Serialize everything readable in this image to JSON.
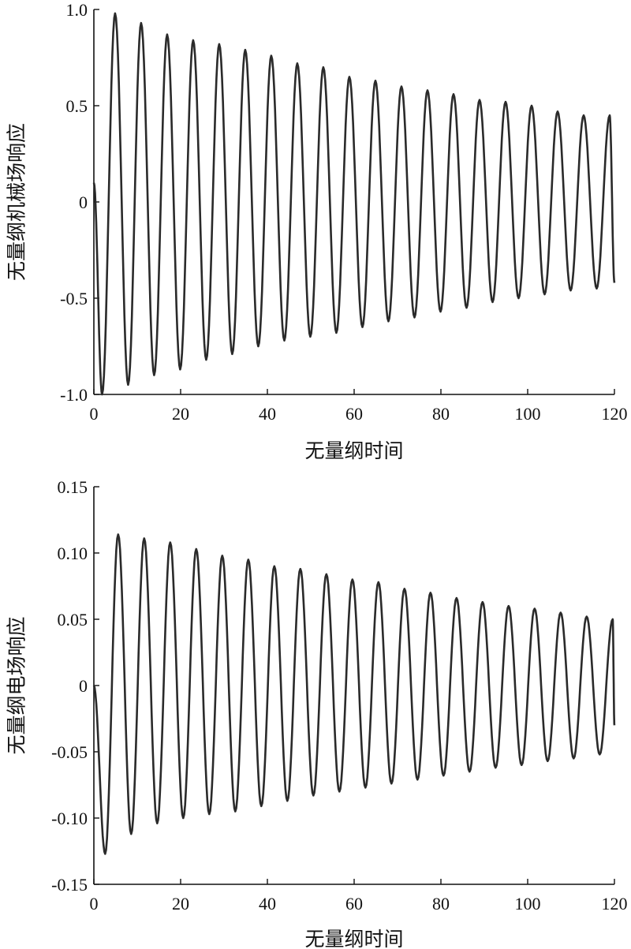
{
  "chart_data": [
    {
      "type": "line",
      "xlabel": "无量纲时间",
      "ylabel": "无量纲机械场响应",
      "xlim": [
        0,
        120
      ],
      "ylim": [
        -1.0,
        1.0
      ],
      "xticks": [
        0,
        20,
        40,
        60,
        80,
        100,
        120
      ],
      "xtick_labels": [
        "0",
        "20",
        "40",
        "60",
        "80",
        "100",
        "120"
      ],
      "yticks": [
        1.0,
        0.5,
        0,
        -0.5,
        -1.0
      ],
      "ytick_labels": [
        "1.0",
        "0.5",
        "0",
        "-0.5",
        "-1.0"
      ],
      "grid": false,
      "series": [
        {
          "x": [
            0,
            1.9,
            4.9,
            7.9,
            10.9,
            13.9,
            16.9,
            19.9,
            22.9,
            25.9,
            28.9,
            31.9,
            34.9,
            37.9,
            40.9,
            43.9,
            46.9,
            49.9,
            52.9,
            55.9,
            58.9,
            61.9,
            64.9,
            67.9,
            70.9,
            73.9,
            76.9,
            79.9,
            82.9,
            85.9,
            88.9,
            91.9,
            94.9,
            97.9,
            100.9,
            103.9,
            106.9,
            109.9,
            112.9,
            115.9,
            118.9,
            120
          ],
          "y": [
            0.1,
            -1.0,
            0.98,
            -0.95,
            0.93,
            -0.9,
            0.87,
            -0.87,
            0.84,
            -0.82,
            0.82,
            -0.79,
            0.79,
            -0.75,
            0.76,
            -0.72,
            0.72,
            -0.7,
            0.7,
            -0.68,
            0.65,
            -0.65,
            0.63,
            -0.62,
            0.6,
            -0.6,
            0.58,
            -0.57,
            0.56,
            -0.55,
            0.53,
            -0.52,
            0.52,
            -0.5,
            0.5,
            -0.48,
            0.47,
            -0.46,
            0.45,
            -0.45,
            0.45,
            -0.42
          ]
        }
      ]
    },
    {
      "type": "line",
      "xlabel": "无量纲时间",
      "ylabel": "无量纲电场响应",
      "xlim": [
        0,
        120
      ],
      "ylim": [
        -0.15,
        0.15
      ],
      "xticks": [
        0,
        20,
        40,
        60,
        80,
        100,
        120
      ],
      "xtick_labels": [
        "0",
        "20",
        "40",
        "60",
        "80",
        "100",
        "120"
      ],
      "yticks": [
        0.15,
        0.1,
        0.05,
        0,
        -0.05,
        -0.1,
        -0.15
      ],
      "ytick_labels": [
        "0.15",
        "0.10",
        "0.05",
        "0",
        "-0.05",
        "-0.10",
        "-0.15"
      ],
      "grid": false,
      "series": [
        {
          "x": [
            0,
            2.6,
            5.6,
            8.6,
            11.6,
            14.6,
            17.6,
            20.6,
            23.6,
            26.6,
            29.6,
            32.6,
            35.6,
            38.6,
            41.6,
            44.6,
            47.6,
            50.6,
            53.6,
            56.6,
            59.6,
            62.6,
            65.6,
            68.6,
            71.6,
            74.6,
            77.6,
            80.6,
            83.6,
            86.6,
            89.6,
            92.6,
            95.6,
            98.6,
            101.6,
            104.6,
            107.6,
            110.6,
            113.6,
            116.6,
            119.6,
            120
          ],
          "y": [
            0,
            -0.127,
            0.114,
            -0.112,
            0.111,
            -0.104,
            0.108,
            -0.1,
            0.103,
            -0.097,
            0.098,
            -0.095,
            0.095,
            -0.091,
            0.09,
            -0.087,
            0.088,
            -0.083,
            0.084,
            -0.08,
            0.08,
            -0.077,
            0.078,
            -0.074,
            0.073,
            -0.071,
            0.07,
            -0.068,
            0.066,
            -0.065,
            0.063,
            -0.062,
            0.06,
            -0.06,
            0.058,
            -0.057,
            0.055,
            -0.055,
            0.052,
            -0.052,
            0.05,
            -0.03
          ]
        }
      ]
    }
  ]
}
